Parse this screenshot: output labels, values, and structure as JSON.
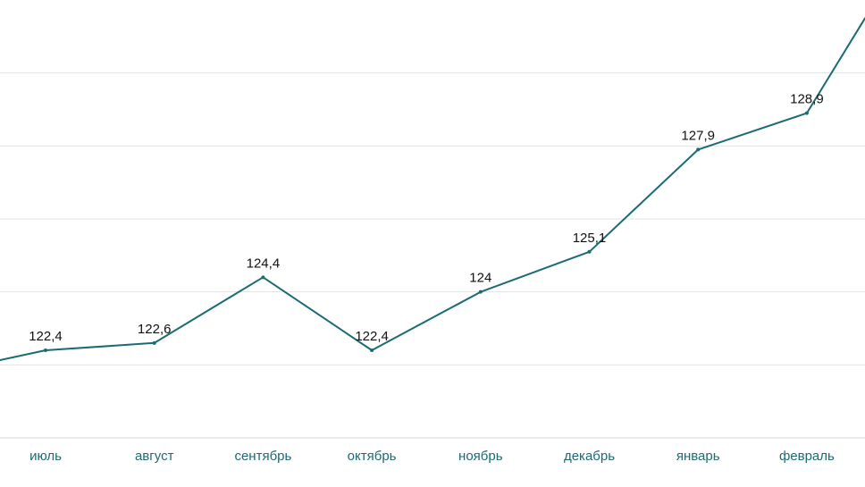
{
  "chart_data": {
    "type": "line",
    "categories": [
      "июль",
      "август",
      "сентябрь",
      "октябрь",
      "ноябрь",
      "декабрь",
      "январь",
      "февраль"
    ],
    "series": [
      {
        "values": [
          122.4,
          122.6,
          124.4,
          122.4,
          124,
          125.1,
          127.9,
          128.9
        ],
        "data_labels": [
          "122,4",
          "122,6",
          "124,4",
          "122,4",
          "124",
          "125,1",
          "127,9",
          "128,9"
        ]
      }
    ],
    "ylim": [
      120,
      132
    ],
    "grid": true,
    "legend": "none"
  },
  "colors": {
    "line": "#1b6b72",
    "tick_label": "#1b6b72"
  }
}
